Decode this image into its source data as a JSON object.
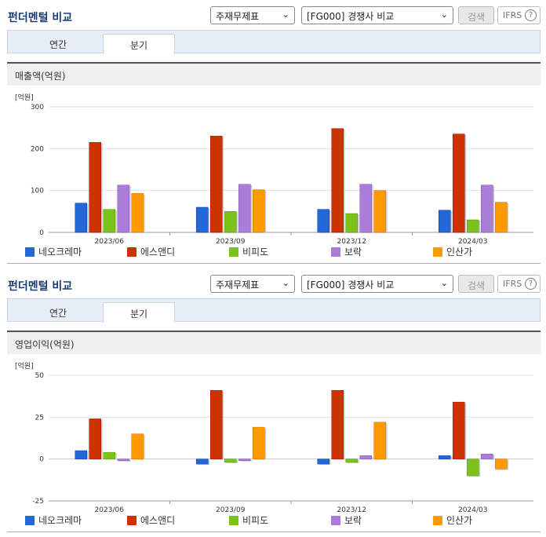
{
  "panels": [
    {
      "title": "펀더멘털 비교",
      "select1": "주재무제표",
      "select2": "[FG000] 경쟁사 비교",
      "search_label": "검색",
      "ifrs_label": "IFRS",
      "help_label": "?",
      "tabs": [
        "연간",
        "분기"
      ],
      "active_tab": 1,
      "section_label": "매출액(억원)",
      "unit_label": "[억원]"
    },
    {
      "title": "펀더멘털 비교",
      "select1": "주재무제표",
      "select2": "[FG000] 경쟁사 비교",
      "search_label": "검색",
      "ifrs_label": "IFRS",
      "help_label": "?",
      "tabs": [
        "연간",
        "분기"
      ],
      "active_tab": 1,
      "section_label": "영업이익(억원)",
      "unit_label": "[억원]"
    }
  ],
  "chart_data": [
    {
      "type": "bar",
      "title": "매출액(억원)",
      "ylabel": "[억원]",
      "categories": [
        "2023/06",
        "2023/09",
        "2023/12",
        "2024/03"
      ],
      "ylim": [
        0,
        300
      ],
      "yticks": [
        0,
        100,
        200,
        300
      ],
      "grid": true,
      "legend": "bottom",
      "series": [
        {
          "name": "네오크레마",
          "color": "#2467d6",
          "values": [
            70,
            60,
            55,
            53
          ]
        },
        {
          "name": "에스앤디",
          "color": "#cc3300",
          "values": [
            215,
            230,
            248,
            235
          ]
        },
        {
          "name": "비피도",
          "color": "#7cc21d",
          "values": [
            55,
            50,
            45,
            30
          ]
        },
        {
          "name": "보락",
          "color": "#a97dd8",
          "values": [
            113,
            115,
            115,
            113
          ]
        },
        {
          "name": "인산가",
          "color": "#ff9900",
          "values": [
            93,
            102,
            100,
            72
          ]
        }
      ]
    },
    {
      "type": "bar",
      "title": "영업이익(억원)",
      "ylabel": "[억원]",
      "categories": [
        "2023/06",
        "2023/09",
        "2023/12",
        "2024/03"
      ],
      "ylim": [
        -25,
        50
      ],
      "yticks": [
        -25,
        0,
        25,
        50
      ],
      "grid": true,
      "legend": "bottom",
      "series": [
        {
          "name": "네오크레마",
          "color": "#2467d6",
          "values": [
            5,
            -3,
            -3,
            2
          ]
        },
        {
          "name": "에스앤디",
          "color": "#cc3300",
          "values": [
            24,
            41,
            41,
            34
          ]
        },
        {
          "name": "비피도",
          "color": "#7cc21d",
          "values": [
            4,
            -2,
            -2,
            -10
          ]
        },
        {
          "name": "보락",
          "color": "#a97dd8",
          "values": [
            -1,
            -1,
            2,
            3
          ]
        },
        {
          "name": "인산가",
          "color": "#ff9900",
          "values": [
            15,
            19,
            22,
            -6
          ]
        }
      ]
    }
  ]
}
